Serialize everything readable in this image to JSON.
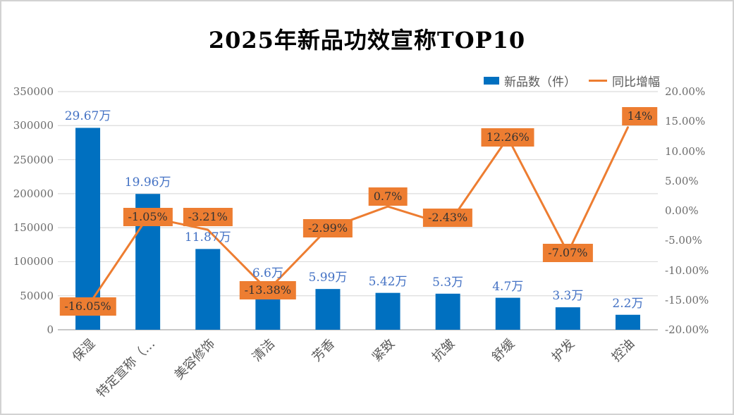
{
  "title": "2025年新品功效宣称TOP10",
  "legend": {
    "items": [
      {
        "label": "新品数（件）",
        "marker": "square-icon",
        "color": "#0070C0"
      },
      {
        "label": "同比增幅",
        "marker": "line-icon",
        "color": "#ED7D31"
      }
    ]
  },
  "colors": {
    "bar": "#0070C0",
    "line": "#ED7D31",
    "bar_label": "#4472C4",
    "line_label_bg": "#ED7D31",
    "line_label_text": "#333333",
    "axis_text": "#6b6b6b",
    "gridline": "#dcdcdc",
    "zero_line": "#c8c8c8"
  },
  "chart_data": {
    "type": "combo-bar-line",
    "title": "2025年新品功效宣称TOP10",
    "categories": [
      "保湿",
      "特定宣称（…",
      "美容修饰",
      "清洁",
      "芳香",
      "紧致",
      "抗皱",
      "舒缓",
      "护发",
      "控油"
    ],
    "series": [
      {
        "name": "新品数（件）",
        "type": "bar",
        "y_axis": "left",
        "values": [
          296700,
          199600,
          118700,
          66000,
          59900,
          54200,
          53000,
          47000,
          33000,
          22000
        ],
        "data_labels": [
          "29.67万",
          "19.96万",
          "11.87万",
          "6.6万",
          "5.99万",
          "5.42万",
          "5.3万",
          "4.7万",
          "3.3万",
          "2.2万"
        ]
      },
      {
        "name": "同比增幅",
        "type": "line",
        "y_axis": "right",
        "values": [
          -16.05,
          -1.05,
          -3.21,
          -13.38,
          -2.99,
          0.7,
          -2.43,
          12.26,
          -7.07,
          14
        ],
        "data_labels": [
          "-16.05%",
          "-1.05%",
          "-3.21%",
          "-13.38%",
          "-2.99%",
          "0.7%",
          "-2.43%",
          "12.26%",
          "-7.07%",
          "14%"
        ]
      }
    ],
    "left_axis": {
      "min": 0,
      "max": 350000,
      "step": 50000,
      "tick_labels": [
        "350000",
        "300000",
        "250000",
        "200000",
        "150000",
        "100000",
        "50000",
        "0"
      ]
    },
    "right_axis": {
      "min": -20,
      "max": 20,
      "step": 5,
      "tick_labels": [
        "20.00%",
        "15.00%",
        "10.00%",
        "5.00%",
        "0.00%",
        "-5.00%",
        "-10.00%",
        "-15.00%",
        "-20.00%"
      ]
    },
    "grid": true,
    "legend_position": "top-right"
  }
}
